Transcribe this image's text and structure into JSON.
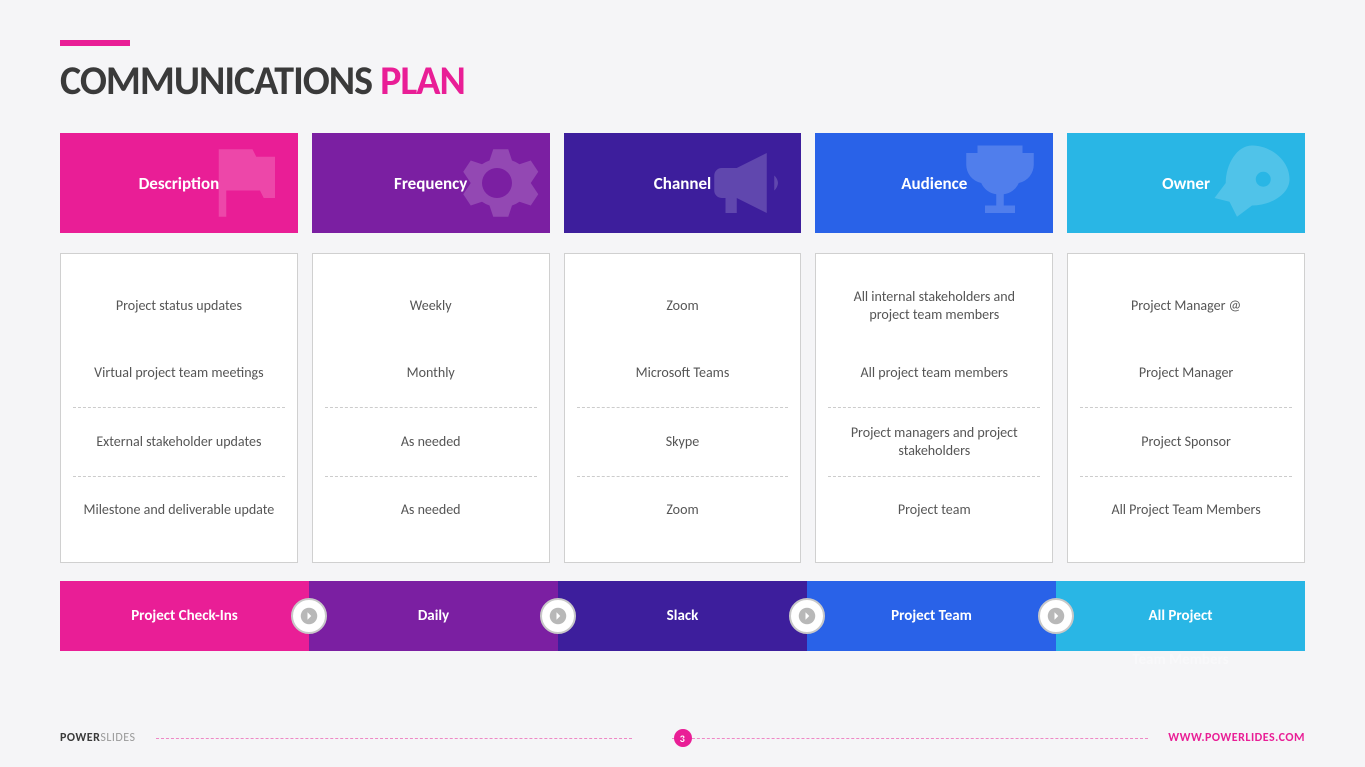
{
  "title": {
    "part1": "COMMUNICATIONS",
    "part2": "PLAN"
  },
  "colors": {
    "accent": "#e91e96",
    "col1": "#e91e96",
    "col2": "#7b1fa2",
    "col3": "#3d1e9c",
    "col4": "#2962e8",
    "col5": "#29b6e5"
  },
  "columns": [
    {
      "header": "Description",
      "icon": "flag",
      "cells": [
        "Project status updates",
        "Virtual project team meetings",
        "External stakeholder updates",
        "Milestone and deliverable update"
      ],
      "footer": "Project Check-Ins"
    },
    {
      "header": "Frequency",
      "icon": "gear",
      "cells": [
        "Weekly",
        "Monthly",
        "As needed",
        "As needed"
      ],
      "footer": "Daily"
    },
    {
      "header": "Channel",
      "icon": "megaphone",
      "cells": [
        "Zoom",
        "Microsoft Teams",
        "Skype",
        "Zoom"
      ],
      "footer": "Slack"
    },
    {
      "header": "Audience",
      "icon": "trophy",
      "cells": [
        "All internal stakeholders and project team members",
        "All project team members",
        "Project managers and project stakeholders",
        "Project team"
      ],
      "footer": "Project Team"
    },
    {
      "header": "Owner",
      "icon": "rocket",
      "cells": [
        "Project Manager @",
        "Project Manager",
        "Project Sponsor",
        "All Project Team Members"
      ],
      "footer": "All Project",
      "footer_overflow": "Team Members"
    }
  ],
  "brand": {
    "part1": "POWER",
    "part2": "SLIDES"
  },
  "page_number": "3",
  "url": "WWW.POWERLIDES.COM"
}
